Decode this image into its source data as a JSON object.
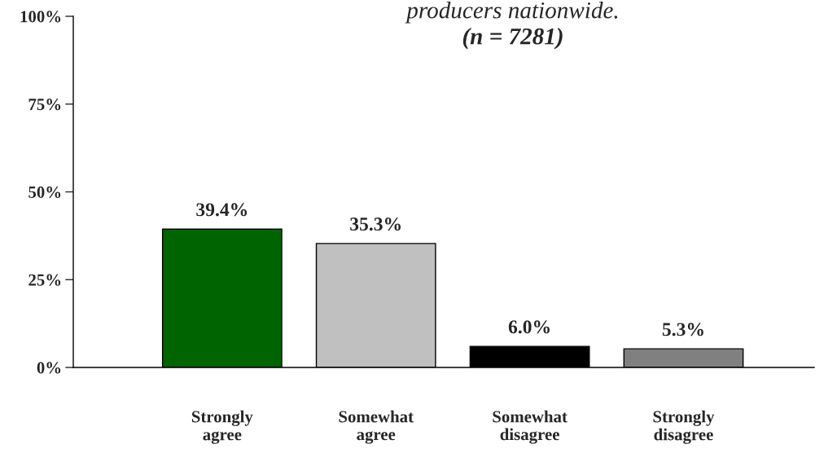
{
  "chart_data": {
    "type": "bar",
    "title": "producers nationwide.",
    "subtitle": "(n = 7281)",
    "categories": [
      "Strongly\nagree",
      "Somewhat\nagree",
      "Somewhat\ndisagree",
      "Strongly\ndisagree"
    ],
    "values": [
      39.4,
      35.3,
      6.0,
      5.3
    ],
    "colors": [
      "#006400",
      "#c0c0c0",
      "#000000",
      "#808080"
    ],
    "value_labels": [
      "39.4%",
      "35.3%",
      "6.0%",
      "5.3%"
    ],
    "ylim": [
      0,
      100
    ],
    "yticks": [
      {
        "value": 0,
        "label": "0%"
      },
      {
        "value": 25,
        "label": "25%"
      },
      {
        "value": 50,
        "label": "50%"
      },
      {
        "value": 75,
        "label": "75%"
      },
      {
        "value": 100,
        "label": "100%"
      }
    ],
    "grid": false
  }
}
